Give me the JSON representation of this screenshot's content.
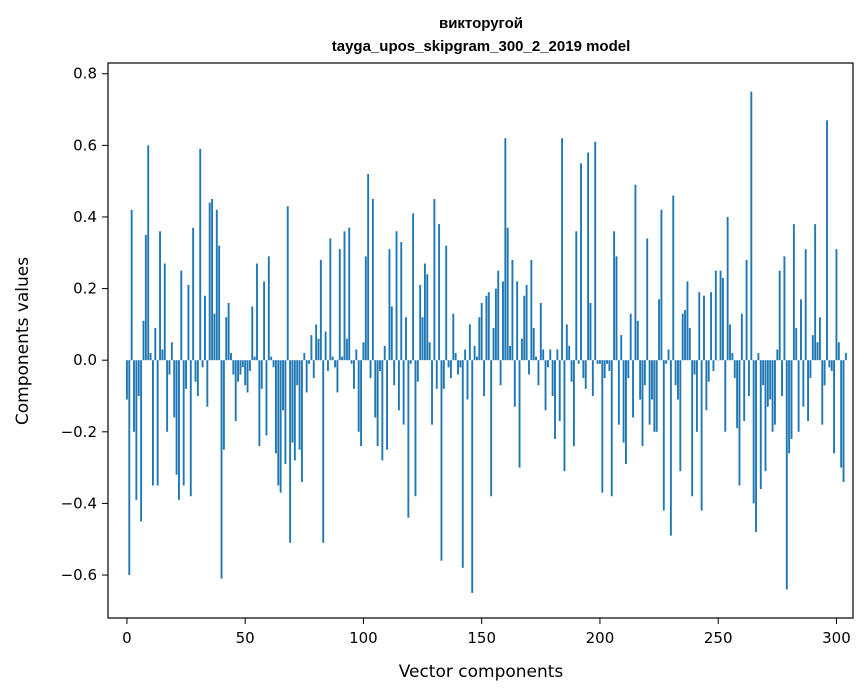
{
  "chart_data": {
    "type": "bar",
    "title": "викторугой",
    "subtitle": "tayga_upos_skipgram_300_2_2019 model",
    "xlabel": "Vector components",
    "ylabel": "Components values",
    "xlim": [
      -8,
      307
    ],
    "ylim": [
      -0.72,
      0.83
    ],
    "xticks": [
      0,
      50,
      100,
      150,
      200,
      250,
      300
    ],
    "yticks": [
      -0.6,
      -0.4,
      -0.2,
      0.0,
      0.2,
      0.4,
      0.6,
      0.8
    ],
    "ytick_labels": [
      "−0.6",
      "−0.4",
      "−0.2",
      "0.0",
      "0.2",
      "0.4",
      "0.6",
      "0.8"
    ],
    "bar_color": "#1f77b4",
    "grid": false,
    "values": [
      -0.11,
      -0.6,
      0.42,
      -0.2,
      -0.39,
      -0.1,
      -0.45,
      0.11,
      0.35,
      0.6,
      0.02,
      -0.35,
      0.09,
      -0.35,
      0.36,
      0.03,
      0.27,
      -0.2,
      -0.04,
      0.05,
      -0.16,
      -0.32,
      -0.39,
      0.25,
      -0.35,
      -0.08,
      0.21,
      -0.38,
      0.37,
      -0.06,
      -0.1,
      0.59,
      -0.02,
      0.18,
      -0.13,
      0.44,
      0.45,
      0.13,
      0.42,
      0.32,
      -0.61,
      -0.25,
      0.12,
      0.16,
      0.02,
      -0.04,
      -0.17,
      -0.06,
      -0.04,
      -0.02,
      -0.07,
      -0.09,
      -0.03,
      0.15,
      0.01,
      0.27,
      -0.24,
      -0.08,
      0.22,
      -0.21,
      0.29,
      0.01,
      -0.02,
      -0.26,
      -0.35,
      -0.37,
      -0.14,
      -0.29,
      0.43,
      -0.51,
      -0.23,
      -0.28,
      -0.07,
      -0.25,
      -0.34,
      0.02,
      -0.09,
      -0.01,
      0.07,
      -0.05,
      0.1,
      0.06,
      0.28,
      -0.51,
      0.08,
      -0.03,
      0.34,
      0.01,
      -0.02,
      -0.09,
      0.31,
      0.01,
      0.36,
      0.06,
      0.37,
      -0.01,
      -0.08,
      0.03,
      -0.2,
      -0.24,
      0.05,
      0.29,
      0.52,
      -0.05,
      0.45,
      -0.16,
      -0.24,
      -0.03,
      -0.28,
      0.04,
      -0.25,
      0.31,
      0.15,
      -0.07,
      0.36,
      -0.14,
      0.33,
      -0.18,
      0.12,
      -0.44,
      -0.01,
      0.41,
      -0.38,
      -0.06,
      0.21,
      0.12,
      0.27,
      0.24,
      0.05,
      -0.18,
      0.45,
      -0.08,
      0.38,
      -0.56,
      -0.08,
      0.32,
      -0.02,
      -0.05,
      0.13,
      0.02,
      -0.04,
      -0.02,
      -0.58,
      0.03,
      -0.11,
      0.1,
      -0.65,
      0.04,
      0.01,
      0.12,
      0.16,
      -0.1,
      0.18,
      0.19,
      -0.38,
      0.09,
      0.2,
      0.25,
      -0.07,
      0.22,
      0.62,
      0.37,
      0.04,
      0.28,
      -0.13,
      0.22,
      -0.3,
      0.06,
      0.18,
      0.21,
      -0.04,
      0.28,
      0.09,
      0.01,
      -0.07,
      0.16,
      0.03,
      -0.14,
      -0.02,
      0.03,
      -0.1,
      -0.22,
      0.03,
      -0.17,
      0.62,
      -0.31,
      0.1,
      0.04,
      -0.06,
      -0.24,
      0.36,
      -0.01,
      0.55,
      -0.05,
      -0.08,
      0.58,
      0.16,
      -0.1,
      0.61,
      -0.01,
      -0.01,
      -0.37,
      -0.05,
      -0.01,
      -0.03,
      -0.38,
      0.36,
      0.29,
      -0.18,
      0.07,
      -0.23,
      -0.29,
      -0.05,
      0.13,
      -0.16,
      0.49,
      0.11,
      -0.11,
      -0.24,
      -0.07,
      0.34,
      -0.18,
      -0.11,
      -0.2,
      -0.2,
      0.17,
      0.42,
      -0.42,
      -0.01,
      0.03,
      -0.49,
      0.46,
      -0.07,
      -0.11,
      -0.31,
      0.13,
      0.14,
      0.22,
      0.09,
      -0.38,
      -0.04,
      -0.2,
      0.19,
      -0.42,
      0.18,
      -0.14,
      -0.06,
      0.19,
      -0.03,
      0.25,
      0.0,
      0.25,
      0.23,
      -0.2,
      0.4,
      0.1,
      0.02,
      -0.05,
      -0.19,
      -0.35,
      0.13,
      -0.17,
      0.28,
      -0.1,
      0.75,
      -0.4,
      -0.48,
      0.02,
      -0.36,
      -0.07,
      -0.31,
      -0.13,
      -0.11,
      -0.2,
      -0.18,
      0.03,
      0.25,
      -0.1,
      0.29,
      -0.64,
      -0.26,
      -0.22,
      0.38,
      0.09,
      -0.2,
      0.17,
      -0.13,
      0.31,
      -0.17,
      -0.05,
      0.07,
      0.38,
      0.05,
      0.12,
      -0.18,
      -0.07,
      0.67,
      -0.02,
      -0.03,
      -0.26,
      0.31,
      0.05,
      -0.3,
      -0.34,
      0.02
    ]
  }
}
